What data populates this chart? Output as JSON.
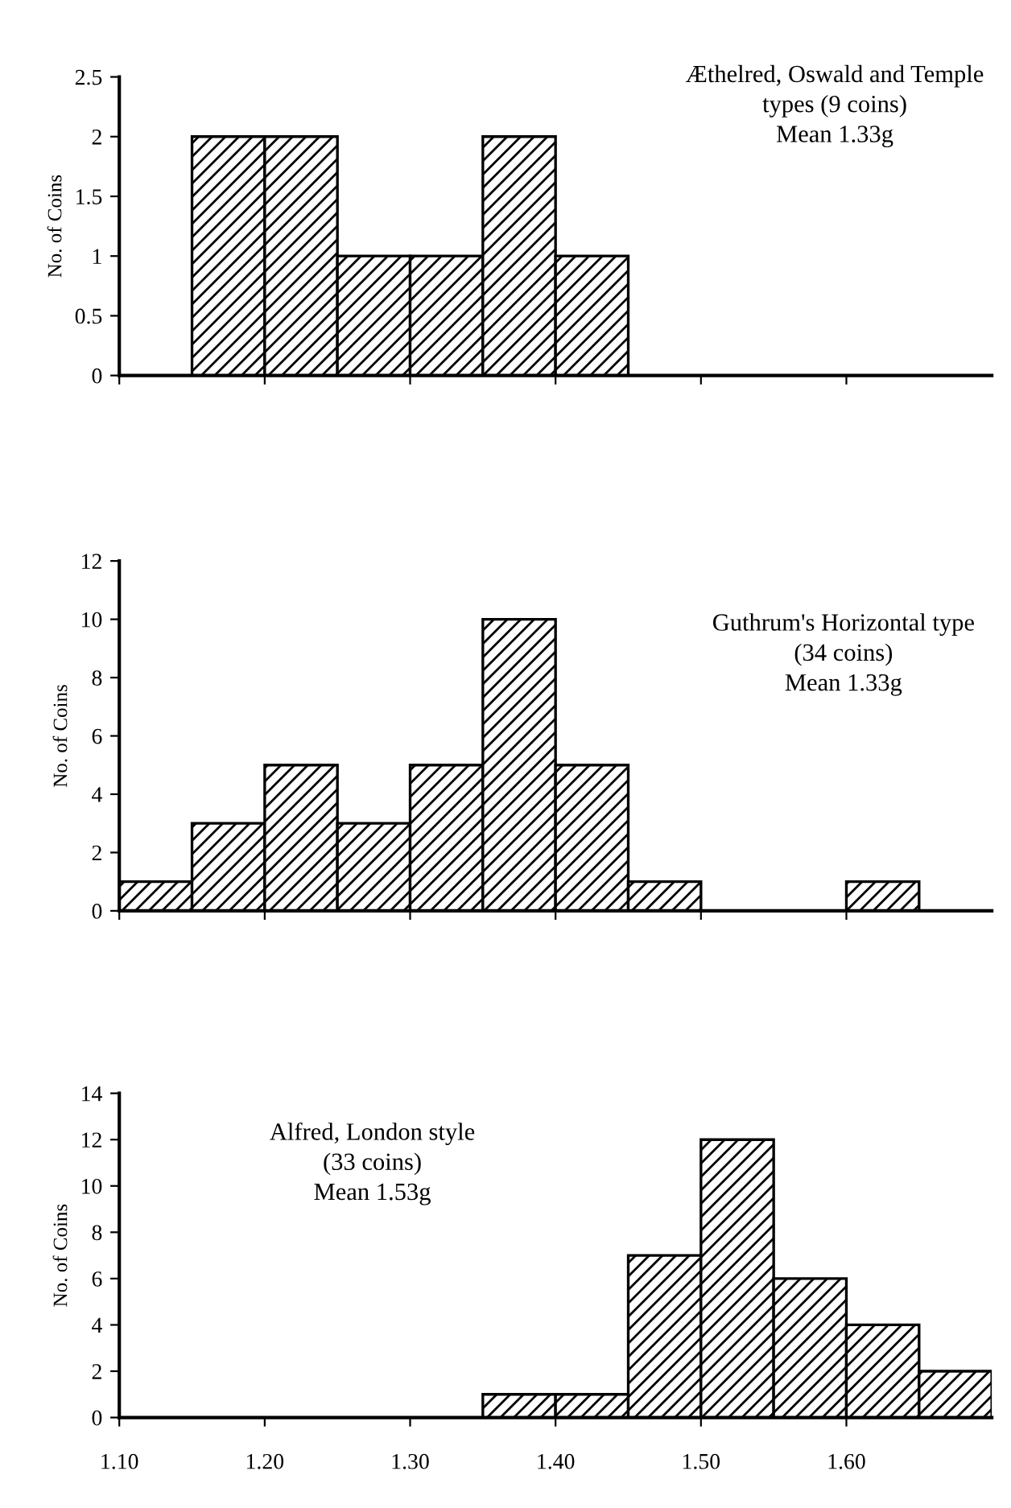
{
  "chart_data": [
    {
      "type": "histogram",
      "title": "Æthelred, Oswald and Temple\ntypes (9 coins)",
      "annotations": [
        "Mean 1.33g"
      ],
      "ylabel": "No. of Coins",
      "bins": [
        1.15,
        1.2,
        1.25,
        1.3,
        1.35,
        1.4,
        1.45
      ],
      "values": [
        2,
        2,
        1,
        1,
        2,
        1
      ],
      "color": "#000000",
      "xlim": [
        1.1,
        1.7
      ],
      "xticks": [
        1.1,
        1.2,
        1.3,
        1.4,
        1.5,
        1.6
      ],
      "ylim": [
        0,
        2.5
      ],
      "yticks": [
        0,
        0.5,
        1,
        1.5,
        2,
        2.5
      ],
      "tick_labels": "y",
      "grid": false,
      "legend": false
    },
    {
      "type": "histogram",
      "title": "Guthrum's Horizontal type\n(34 coins)",
      "annotations": [
        "Mean 1.33g"
      ],
      "ylabel": "No. of Coins",
      "bins": [
        1.1,
        1.15,
        1.2,
        1.25,
        1.3,
        1.35,
        1.4,
        1.45,
        1.5,
        1.55,
        1.6,
        1.65,
        1.7
      ],
      "values": [
        1,
        3,
        5,
        3,
        5,
        10,
        5,
        1,
        0,
        0,
        1,
        0
      ],
      "color": "#000000",
      "xlim": [
        1.1,
        1.7
      ],
      "xticks": [
        1.1,
        1.2,
        1.3,
        1.4,
        1.5,
        1.6
      ],
      "ylim": [
        0,
        12
      ],
      "yticks": [
        0,
        2,
        4,
        6,
        8,
        10,
        12
      ],
      "tick_labels": "y",
      "grid": false,
      "legend": false
    },
    {
      "type": "histogram",
      "title": "Alfred, London style\n(33 coins)",
      "annotations": [
        "Mean 1.53g"
      ],
      "ylabel": "No. of Coins",
      "bins": [
        1.35,
        1.4,
        1.45,
        1.5,
        1.55,
        1.6,
        1.65,
        1.7
      ],
      "values": [
        1,
        1,
        7,
        12,
        6,
        4,
        2
      ],
      "color": "#000000",
      "xlim": [
        1.1,
        1.7
      ],
      "xticks": [
        {
          "value": 1.1,
          "label": "1.10"
        },
        {
          "value": 1.2,
          "label": "1.20"
        },
        {
          "value": 1.3,
          "label": "1.30"
        },
        {
          "value": 1.4,
          "label": "1.40"
        },
        {
          "value": 1.5,
          "label": "1.50"
        },
        {
          "value": 1.6,
          "label": "1.60"
        }
      ],
      "ylim": [
        0,
        14
      ],
      "yticks": [
        0,
        2,
        4,
        6,
        8,
        10,
        12,
        14
      ],
      "grid": false,
      "legend": false
    }
  ]
}
